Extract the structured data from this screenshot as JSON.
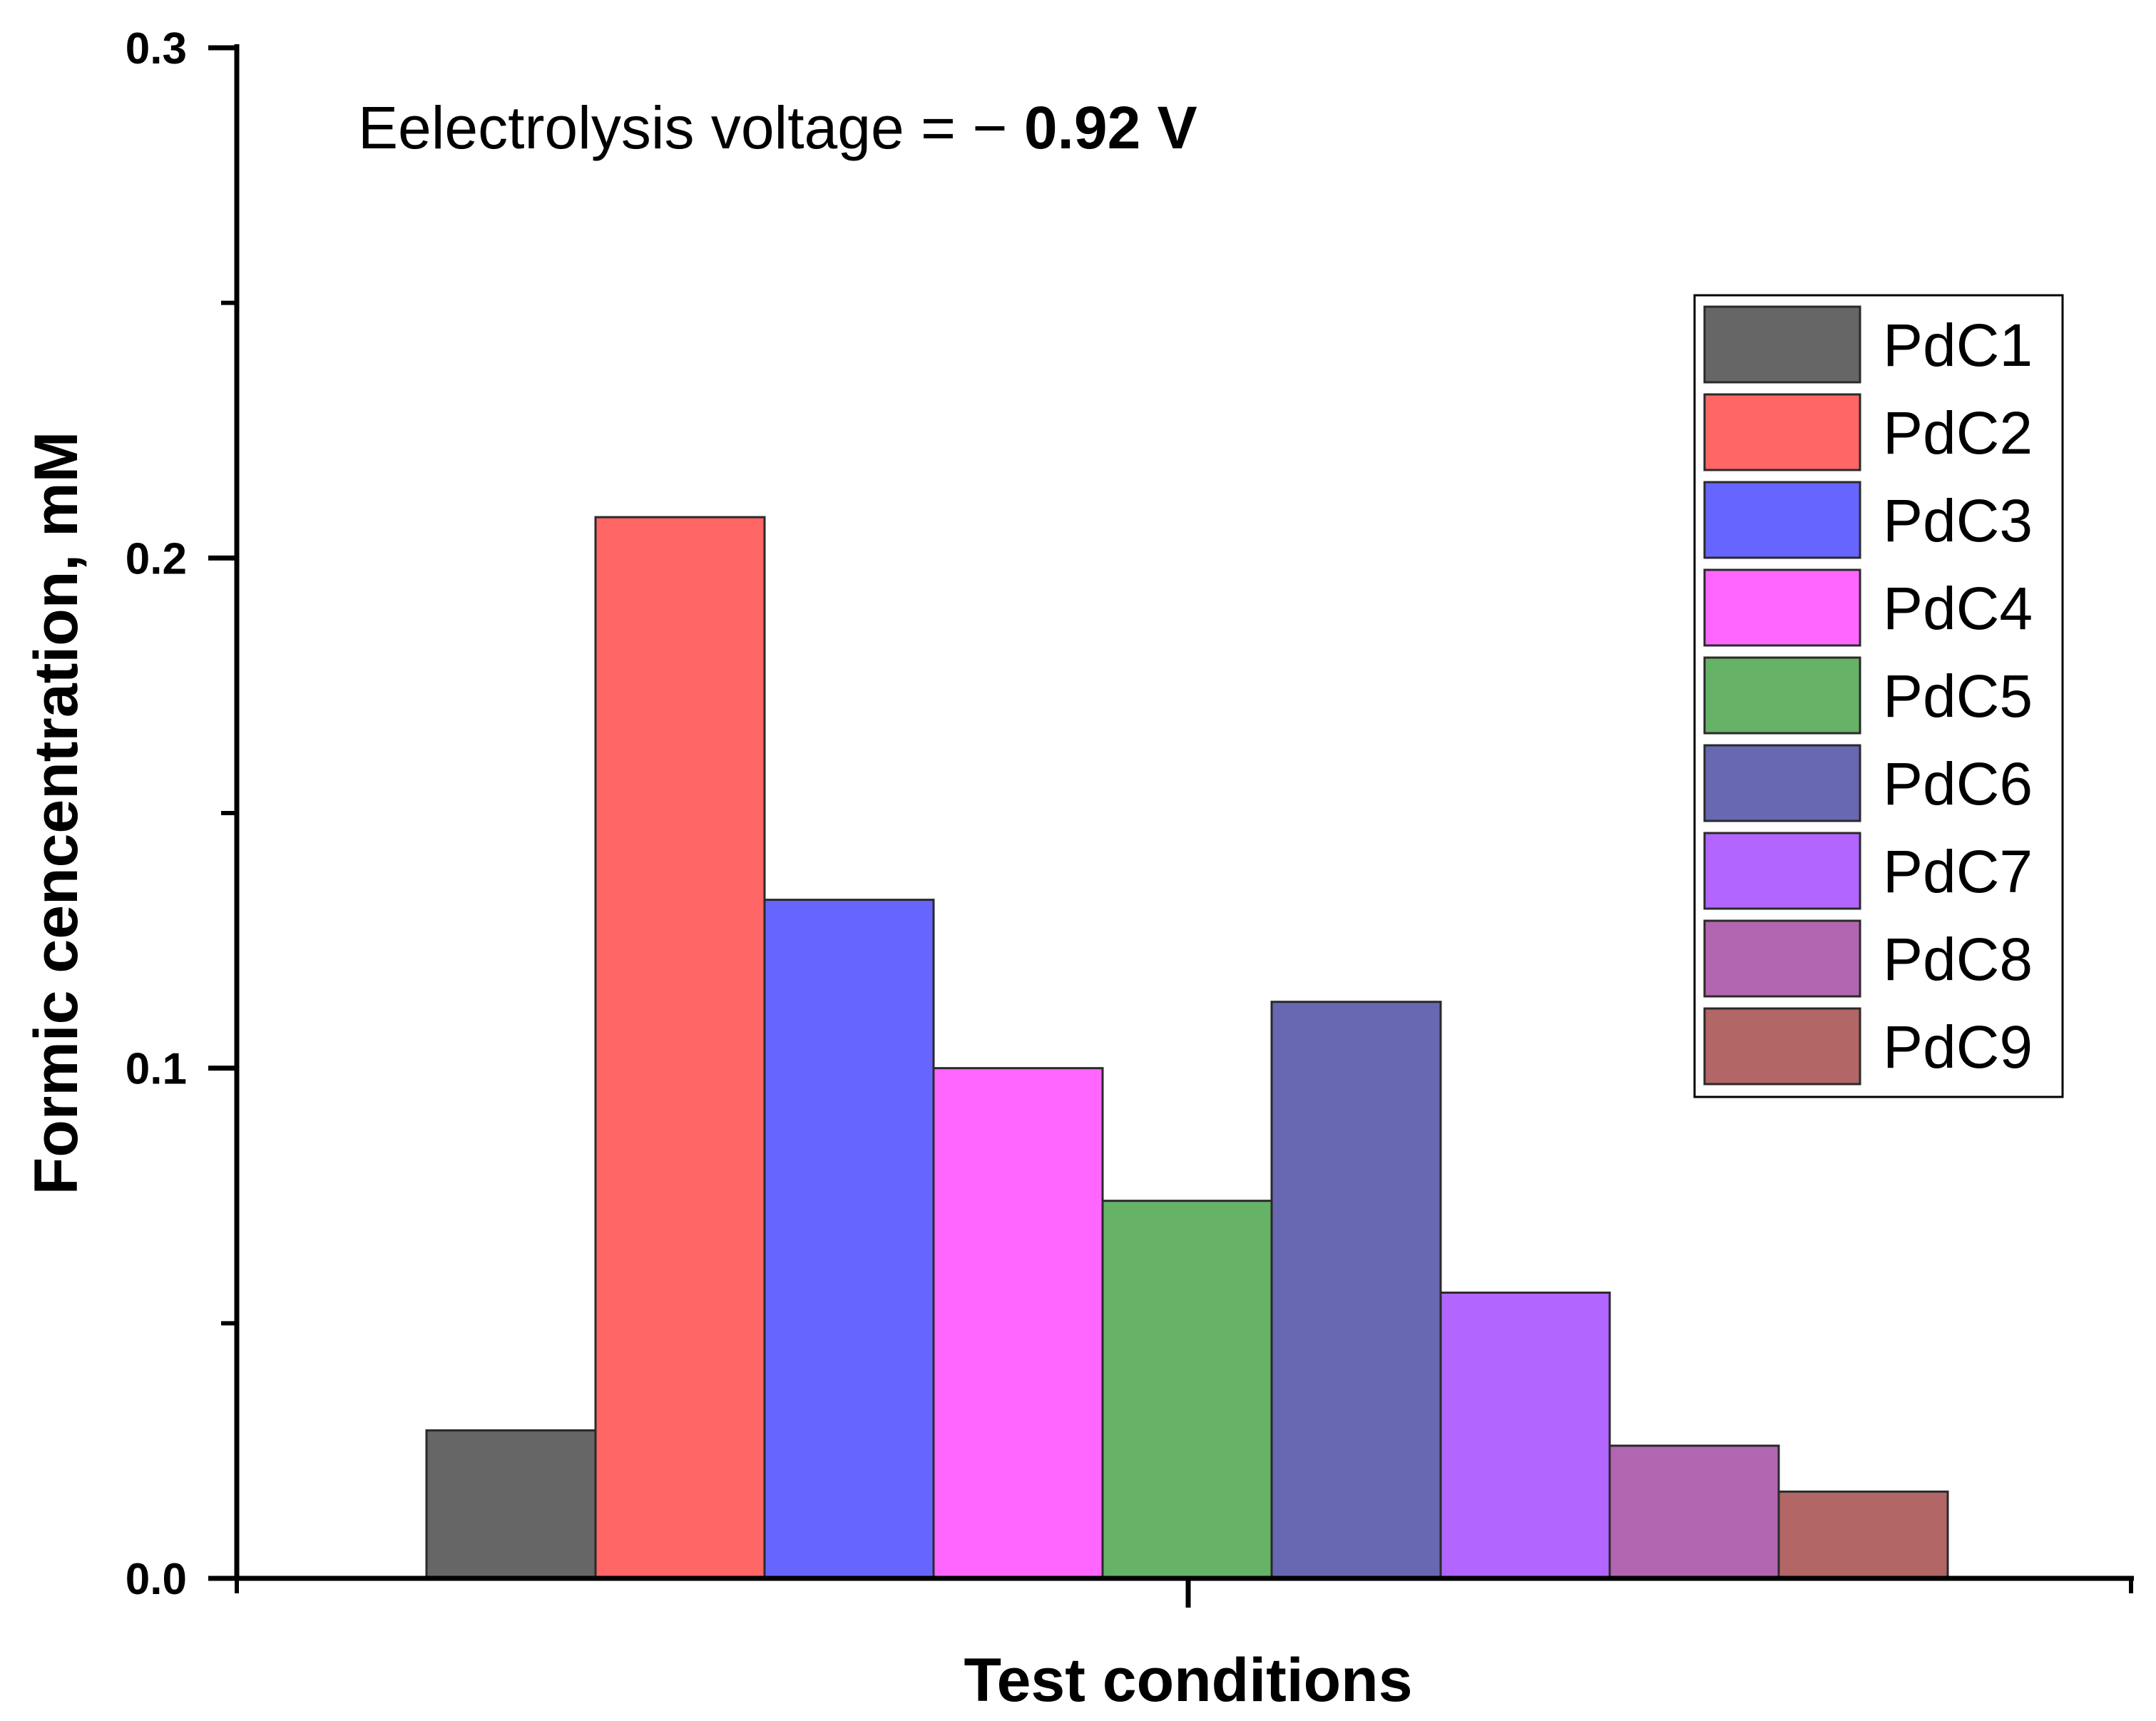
{
  "chart_data": {
    "type": "bar",
    "title": "",
    "xlabel": "Test conditions",
    "ylabel": "Formic cencentration, mM",
    "ylim": [
      0.0,
      0.3
    ],
    "y_ticks": [
      "0.0",
      "0.1",
      "0.2",
      "0.3"
    ],
    "grid": false,
    "legend_position": "top-right",
    "annotation": {
      "prefix": "Eelectrolysis voltage = − ",
      "value": "0.92 V"
    },
    "series": [
      {
        "name": "PdC1",
        "value": 0.029,
        "color": "#666666"
      },
      {
        "name": "PdC2",
        "value": 0.208,
        "color": "#FF6666"
      },
      {
        "name": "PdC3",
        "value": 0.133,
        "color": "#6666FF"
      },
      {
        "name": "PdC4",
        "value": 0.1,
        "color": "#FF66FF"
      },
      {
        "name": "PdC5",
        "value": 0.074,
        "color": "#66B266"
      },
      {
        "name": "PdC6",
        "value": 0.113,
        "color": "#6767B2"
      },
      {
        "name": "PdC7",
        "value": 0.056,
        "color": "#B266FF"
      },
      {
        "name": "PdC8",
        "value": 0.026,
        "color": "#B266B2"
      },
      {
        "name": "PdC9",
        "value": 0.017,
        "color": "#B26666"
      }
    ]
  }
}
